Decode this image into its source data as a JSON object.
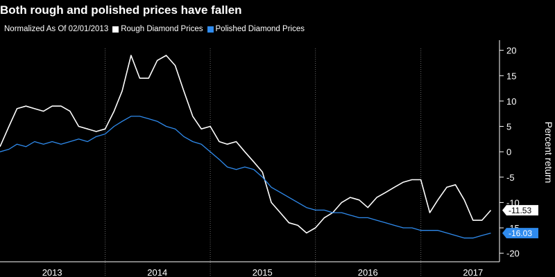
{
  "title": "Both rough and polished prices have fallen",
  "legend": {
    "note": "Normalized As Of 02/01/2013",
    "items": [
      {
        "label": "Rough Diamond Prices",
        "color": "#ffffff"
      },
      {
        "label": "Polished Diamond Prices",
        "color": "#2f8bee"
      }
    ]
  },
  "chart_data": {
    "type": "line",
    "ylabel": "Percent return",
    "ylim": [
      -21,
      22
    ],
    "yticks": [
      20,
      15,
      10,
      5,
      0,
      -5,
      -10,
      -15,
      -20
    ],
    "xlim": [
      "2013-01-01",
      "2017-10-01"
    ],
    "xticks": [
      {
        "label": "2013",
        "date": "2013-07-01"
      },
      {
        "label": "2014",
        "date": "2014-07-01"
      },
      {
        "label": "2015",
        "date": "2015-07-01"
      },
      {
        "label": "2016",
        "date": "2016-07-01"
      },
      {
        "label": "2017",
        "date": "2017-07-01"
      }
    ],
    "year_boundaries": [
      "2014-01-01",
      "2015-01-01",
      "2016-01-01",
      "2017-01-01"
    ],
    "grid": false,
    "series": [
      {
        "name": "Rough Diamond Prices",
        "color": "#ffffff",
        "last_value": "-11.53",
        "points": [
          [
            "2013-01-01",
            1
          ],
          [
            "2013-02-01",
            5
          ],
          [
            "2013-03-01",
            8.5
          ],
          [
            "2013-04-01",
            9
          ],
          [
            "2013-05-01",
            8.5
          ],
          [
            "2013-06-01",
            8
          ],
          [
            "2013-07-01",
            9
          ],
          [
            "2013-08-01",
            9
          ],
          [
            "2013-09-01",
            8
          ],
          [
            "2013-10-01",
            5
          ],
          [
            "2013-11-01",
            4.5
          ],
          [
            "2013-12-01",
            4
          ],
          [
            "2014-01-01",
            4.5
          ],
          [
            "2014-02-01",
            8
          ],
          [
            "2014-03-01",
            12
          ],
          [
            "2014-04-01",
            19
          ],
          [
            "2014-05-01",
            14.5
          ],
          [
            "2014-06-01",
            14.5
          ],
          [
            "2014-07-01",
            18
          ],
          [
            "2014-08-01",
            19
          ],
          [
            "2014-09-01",
            17
          ],
          [
            "2014-10-01",
            12
          ],
          [
            "2014-11-01",
            7
          ],
          [
            "2014-12-01",
            4.5
          ],
          [
            "2015-01-01",
            5
          ],
          [
            "2015-02-01",
            2
          ],
          [
            "2015-03-01",
            1.5
          ],
          [
            "2015-04-01",
            2
          ],
          [
            "2015-05-01",
            0
          ],
          [
            "2015-06-01",
            -2
          ],
          [
            "2015-07-01",
            -4
          ],
          [
            "2015-08-01",
            -10
          ],
          [
            "2015-09-01",
            -12
          ],
          [
            "2015-10-01",
            -14
          ],
          [
            "2015-11-01",
            -14.5
          ],
          [
            "2015-12-01",
            -16
          ],
          [
            "2016-01-01",
            -15
          ],
          [
            "2016-02-01",
            -13
          ],
          [
            "2016-03-01",
            -12
          ],
          [
            "2016-04-01",
            -10
          ],
          [
            "2016-05-01",
            -9
          ],
          [
            "2016-06-01",
            -9.5
          ],
          [
            "2016-07-01",
            -11
          ],
          [
            "2016-08-01",
            -9
          ],
          [
            "2016-09-01",
            -8
          ],
          [
            "2016-10-01",
            -7
          ],
          [
            "2016-11-01",
            -6
          ],
          [
            "2016-12-01",
            -5.5
          ],
          [
            "2017-01-01",
            -5.5
          ],
          [
            "2017-02-01",
            -12
          ],
          [
            "2017-03-01",
            -9.5
          ],
          [
            "2017-04-01",
            -7
          ],
          [
            "2017-05-01",
            -6.5
          ],
          [
            "2017-06-01",
            -9.5
          ],
          [
            "2017-07-01",
            -13.5
          ],
          [
            "2017-08-01",
            -13.5
          ],
          [
            "2017-09-01",
            -11.53
          ]
        ]
      },
      {
        "name": "Polished Diamond Prices",
        "color": "#2f8bee",
        "last_value": "-16.03",
        "points": [
          [
            "2013-01-01",
            0
          ],
          [
            "2013-02-01",
            0.5
          ],
          [
            "2013-03-01",
            1.5
          ],
          [
            "2013-04-01",
            1
          ],
          [
            "2013-05-01",
            2
          ],
          [
            "2013-06-01",
            1.5
          ],
          [
            "2013-07-01",
            2
          ],
          [
            "2013-08-01",
            1.5
          ],
          [
            "2013-09-01",
            2
          ],
          [
            "2013-10-01",
            2.5
          ],
          [
            "2013-11-01",
            2
          ],
          [
            "2013-12-01",
            3
          ],
          [
            "2014-01-01",
            3.5
          ],
          [
            "2014-02-01",
            5
          ],
          [
            "2014-03-01",
            6
          ],
          [
            "2014-04-01",
            7
          ],
          [
            "2014-05-01",
            7
          ],
          [
            "2014-06-01",
            6.5
          ],
          [
            "2014-07-01",
            6
          ],
          [
            "2014-08-01",
            5
          ],
          [
            "2014-09-01",
            4.5
          ],
          [
            "2014-10-01",
            3
          ],
          [
            "2014-11-01",
            2
          ],
          [
            "2014-12-01",
            1.5
          ],
          [
            "2015-01-01",
            0
          ],
          [
            "2015-02-01",
            -1.5
          ],
          [
            "2015-03-01",
            -3
          ],
          [
            "2015-04-01",
            -3.5
          ],
          [
            "2015-05-01",
            -3
          ],
          [
            "2015-06-01",
            -3.5
          ],
          [
            "2015-07-01",
            -5
          ],
          [
            "2015-08-01",
            -7
          ],
          [
            "2015-09-01",
            -8
          ],
          [
            "2015-10-01",
            -9
          ],
          [
            "2015-11-01",
            -10
          ],
          [
            "2015-12-01",
            -11
          ],
          [
            "2016-01-01",
            -11.5
          ],
          [
            "2016-02-01",
            -11.5
          ],
          [
            "2016-03-01",
            -12
          ],
          [
            "2016-04-01",
            -12
          ],
          [
            "2016-05-01",
            -12.5
          ],
          [
            "2016-06-01",
            -13
          ],
          [
            "2016-07-01",
            -13
          ],
          [
            "2016-08-01",
            -13.5
          ],
          [
            "2016-09-01",
            -14
          ],
          [
            "2016-10-01",
            -14.5
          ],
          [
            "2016-11-01",
            -15
          ],
          [
            "2016-12-01",
            -15
          ],
          [
            "2017-01-01",
            -15.5
          ],
          [
            "2017-02-01",
            -15.5
          ],
          [
            "2017-03-01",
            -15.5
          ],
          [
            "2017-04-01",
            -16
          ],
          [
            "2017-05-01",
            -16.5
          ],
          [
            "2017-06-01",
            -17
          ],
          [
            "2017-07-01",
            -17
          ],
          [
            "2017-08-01",
            -16.5
          ],
          [
            "2017-09-01",
            -16.03
          ]
        ]
      }
    ]
  }
}
